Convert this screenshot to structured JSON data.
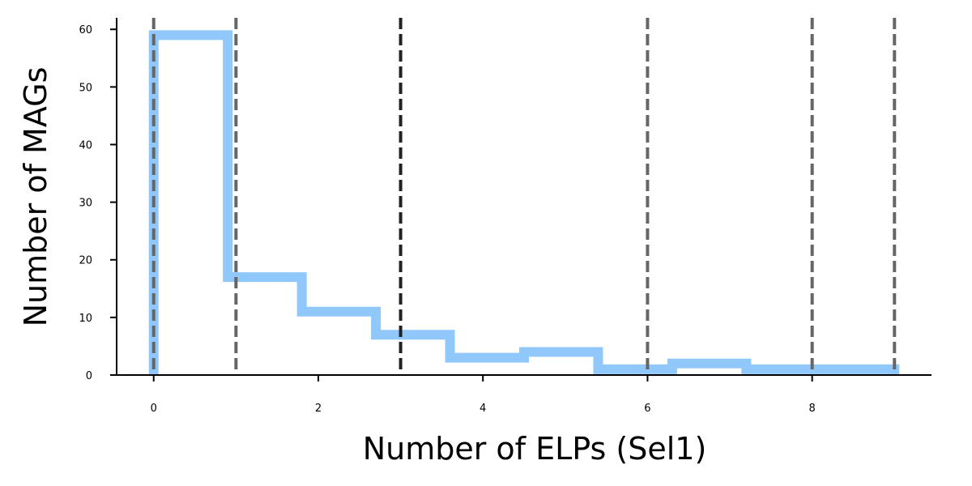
{
  "chart_data": {
    "type": "histogram",
    "title": "",
    "xlabel": "Number of ELPs (Sel1)",
    "ylabel": "Number of MAGs",
    "xlim": [
      -0.45,
      9.45
    ],
    "ylim": [
      0,
      62
    ],
    "x_ticks": [
      0,
      2,
      4,
      6,
      8
    ],
    "y_ticks": [
      0,
      10,
      20,
      30,
      40,
      50,
      60
    ],
    "bin_edges": [
      0,
      0.9,
      1.8,
      2.7,
      3.6,
      4.5,
      5.4,
      6.3,
      7.2,
      8.1,
      9.0
    ],
    "counts": [
      59,
      17,
      11,
      7,
      3,
      4,
      1,
      2,
      1,
      1
    ],
    "histtype": "step",
    "step_color": "#90c8fc",
    "vlines": [
      {
        "x": 0,
        "color": "#666666"
      },
      {
        "x": 1,
        "color": "#666666"
      },
      {
        "x": 3,
        "color": "#222222"
      },
      {
        "x": 6,
        "color": "#666666"
      },
      {
        "x": 8,
        "color": "#666666"
      },
      {
        "x": 9,
        "color": "#666666"
      }
    ],
    "vline_style": "dashed",
    "grid": false,
    "legend": "none"
  }
}
